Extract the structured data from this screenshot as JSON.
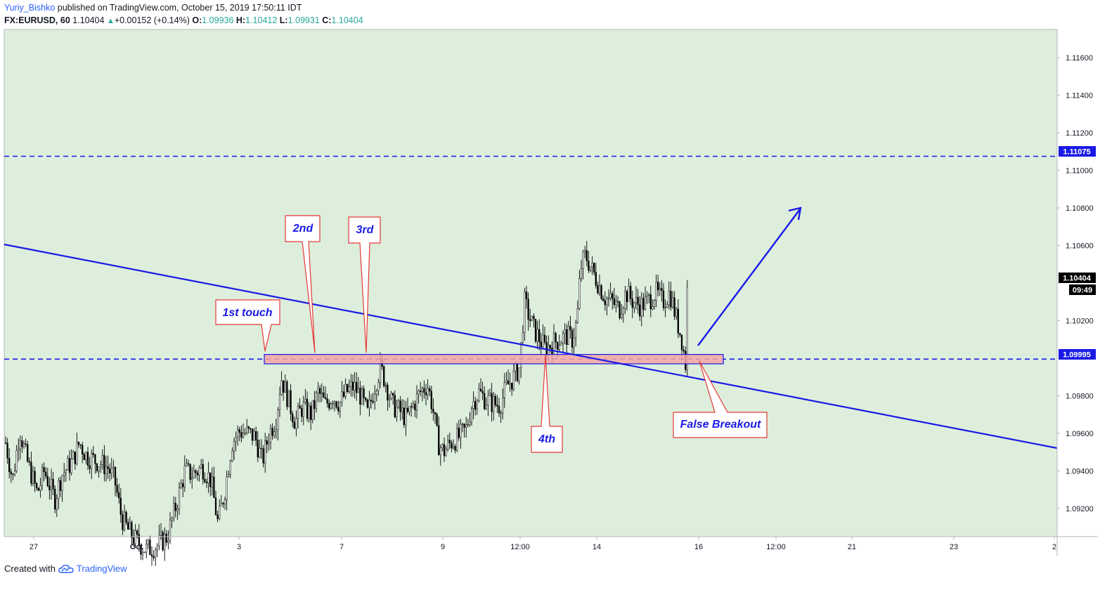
{
  "header": {
    "author": "Yuriy_Bishko",
    "published_text": "published on TradingView.com, October 15, 2019 17:50:11 IDT",
    "symbol": "FX:EURUSD, 60",
    "last": "1.10404",
    "change": "+0.00152 (+0.14%)",
    "o_label": "O:",
    "o_value": "1.09936",
    "h_label": "H:",
    "h_value": "1.10412",
    "l_label": "L:",
    "l_value": "1.09931",
    "c_label": "C:",
    "c_value": "1.10404"
  },
  "footer": {
    "created_with": "Created with",
    "brand": "TradingView"
  },
  "colors": {
    "background": "#ddeedd",
    "trendline": "#1a1ae6",
    "level_line": "#1a1ae6",
    "zone_fill": "#f4a6a6",
    "zone_border": "#1a1ae6",
    "callout_border": "#e53935",
    "annotation_text": "#1a1ae6",
    "candle": "#000000",
    "price_label_bg": "#000000",
    "level_label_bg": "#1a1ae6"
  },
  "chart_data": {
    "type": "candlestick",
    "symbol": "FX:EURUSD",
    "interval": "60",
    "ylim": [
      1.0905,
      1.1175
    ],
    "y_ticks": [
      "1.11600",
      "1.11400",
      "1.11200",
      "1.11000",
      "1.10800",
      "1.10600",
      "1.10200",
      "1.09800",
      "1.09600",
      "1.09400",
      "1.09200"
    ],
    "x_ticks": [
      "27",
      "Oct",
      "3",
      "7",
      "9",
      "12:00",
      "14",
      "16",
      "12:00",
      "21",
      "23",
      "2"
    ],
    "price_labels": {
      "resistance": "1.11075",
      "last": "1.10404",
      "countdown": "09:49",
      "support": "1.09995"
    },
    "levels": [
      {
        "name": "resistance",
        "price": 1.11075,
        "style": "dashed"
      },
      {
        "name": "support",
        "price": 1.09995,
        "style": "dashed"
      }
    ],
    "zone": {
      "price_low": 1.0997,
      "price_high": 1.1002,
      "from": "Oct 3",
      "to": "Oct 16"
    },
    "trendline": {
      "from": {
        "time": "Sep 25",
        "price": 1.1059
      },
      "to": {
        "time": "Oct 2",
        "price": 1.095
      }
    },
    "annotations": [
      "1st touch",
      "2nd",
      "3rd",
      "4th",
      "False Breakout"
    ],
    "projection": "up arrow toward 1.1078",
    "path": [
      [
        0,
        1.0955
      ],
      [
        10,
        1.0935
      ],
      [
        20,
        1.0962
      ],
      [
        30,
        1.0946
      ],
      [
        45,
        1.0928
      ],
      [
        55,
        1.094
      ],
      [
        70,
        1.0925
      ],
      [
        80,
        1.0938
      ],
      [
        95,
        1.0945
      ],
      [
        105,
        1.0955
      ],
      [
        115,
        1.0948
      ],
      [
        130,
        1.0945
      ],
      [
        145,
        1.0942
      ],
      [
        155,
        1.0935
      ],
      [
        165,
        1.0915
      ],
      [
        175,
        1.0908
      ],
      [
        185,
        1.0903
      ],
      [
        200,
        1.0898
      ],
      [
        215,
        1.09
      ],
      [
        230,
        1.0905
      ],
      [
        245,
        1.0925
      ],
      [
        255,
        1.094
      ],
      [
        265,
        1.0938
      ],
      [
        280,
        1.0942
      ],
      [
        292,
        1.0935
      ],
      [
        302,
        1.0912
      ],
      [
        312,
        1.093
      ],
      [
        322,
        1.0955
      ],
      [
        332,
        1.0961
      ],
      [
        345,
        1.096
      ],
      [
        355,
        1.0958
      ],
      [
        365,
        1.0945
      ],
      [
        375,
        1.096
      ],
      [
        385,
        1.0968
      ],
      [
        392,
        1.099
      ],
      [
        402,
        1.0978
      ],
      [
        412,
        1.0966
      ],
      [
        422,
        1.0974
      ],
      [
        435,
        1.097
      ],
      [
        445,
        1.0982
      ],
      [
        455,
        1.0975
      ],
      [
        465,
        1.098
      ],
      [
        475,
        1.0976
      ],
      [
        485,
        1.0982
      ],
      [
        495,
        1.0985
      ],
      [
        505,
        1.098
      ],
      [
        515,
        1.097
      ],
      [
        525,
        1.0985
      ],
      [
        533,
        1.0995
      ],
      [
        540,
        1.0988
      ],
      [
        550,
        1.0975
      ],
      [
        560,
        1.0972
      ],
      [
        570,
        1.0968
      ],
      [
        580,
        1.0975
      ],
      [
        590,
        1.0982
      ],
      [
        600,
        1.0986
      ],
      [
        607,
        1.0975
      ],
      [
        615,
        1.0955
      ],
      [
        623,
        1.095
      ],
      [
        633,
        1.0955
      ],
      [
        645,
        1.0958
      ],
      [
        655,
        1.0962
      ],
      [
        663,
        1.0975
      ],
      [
        673,
        1.0982
      ],
      [
        683,
        1.0978
      ],
      [
        693,
        1.0976
      ],
      [
        703,
        1.0975
      ],
      [
        713,
        1.0985
      ],
      [
        723,
        1.099
      ],
      [
        731,
        1.0995
      ],
      [
        738,
        1.103
      ],
      [
        745,
        1.1022
      ],
      [
        752,
        1.1015
      ],
      [
        760,
        1.101
      ],
      [
        768,
        1.1005
      ],
      [
        778,
        1.1008
      ],
      [
        788,
        1.101
      ],
      [
        798,
        1.1012
      ],
      [
        806,
        1.101
      ],
      [
        813,
        1.102
      ],
      [
        818,
        1.1048
      ],
      [
        825,
        1.1055
      ],
      [
        833,
        1.1048
      ],
      [
        843,
        1.104
      ],
      [
        853,
        1.1032
      ],
      [
        863,
        1.103
      ],
      [
        873,
        1.1026
      ],
      [
        883,
        1.1035
      ],
      [
        893,
        1.103
      ],
      [
        903,
        1.1028
      ],
      [
        913,
        1.103
      ],
      [
        925,
        1.1035
      ],
      [
        935,
        1.103
      ],
      [
        945,
        1.1035
      ],
      [
        955,
        1.102
      ],
      [
        962,
        1.101
      ],
      [
        968,
        1.0995
      ],
      [
        972,
        1.1038
      ]
    ]
  }
}
